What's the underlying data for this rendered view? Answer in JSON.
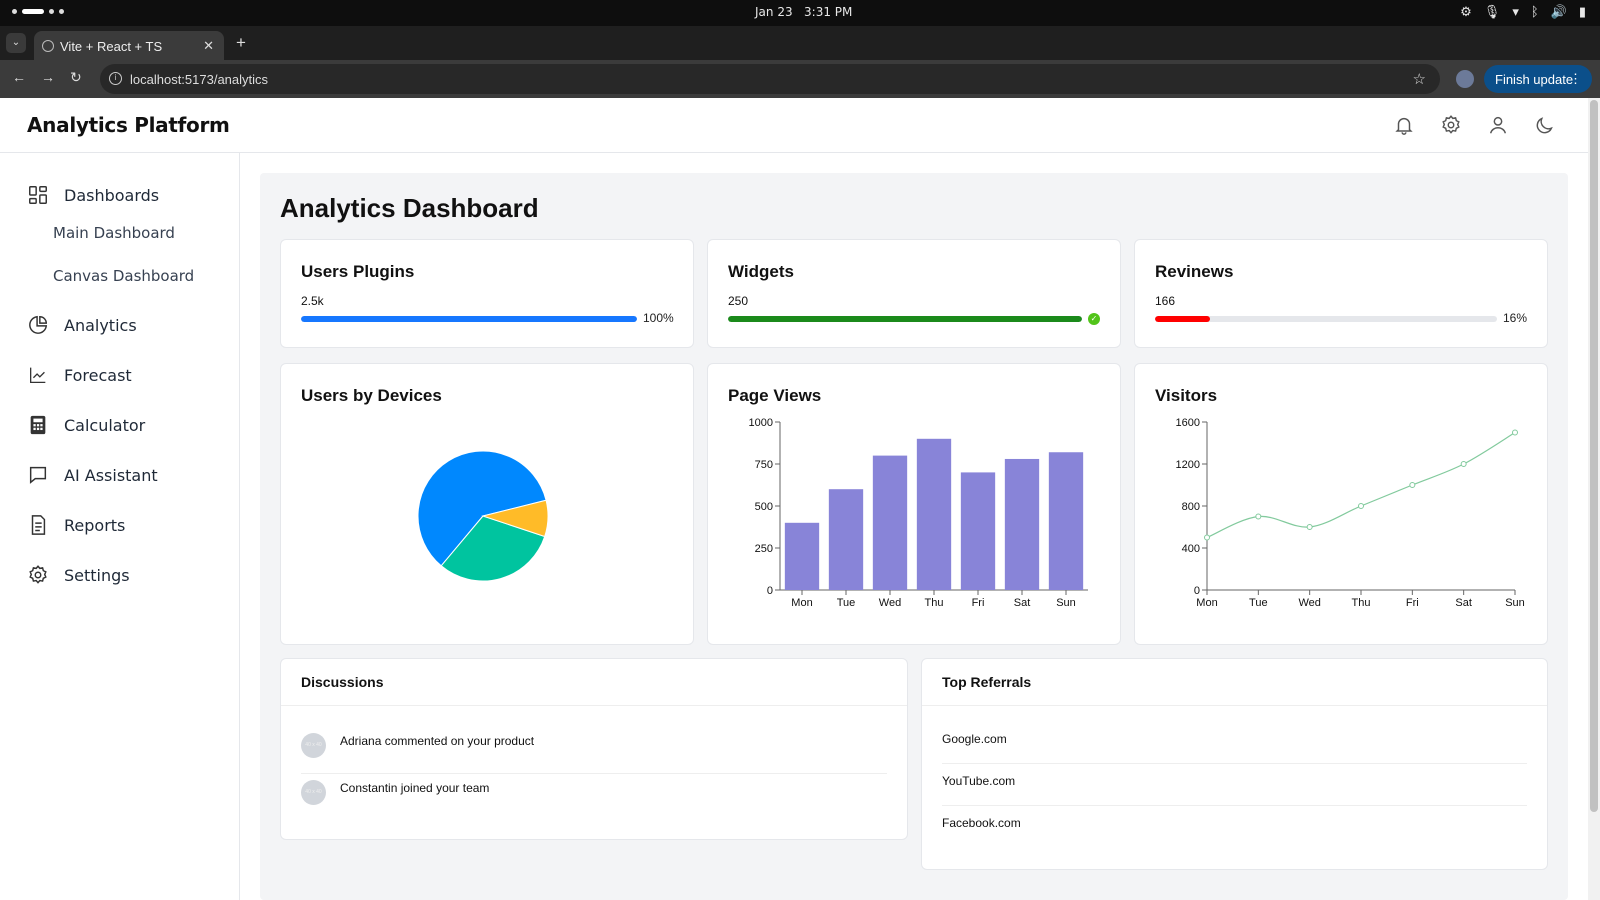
{
  "os": {
    "date": "Jan 23",
    "time": "3:31 PM"
  },
  "browser": {
    "tab_title": "Vite + React + TS",
    "tab_close": "✕",
    "new_tab": "+",
    "url": "localhost:5173/analytics",
    "finish_update": "Finish update"
  },
  "header": {
    "title": "Analytics Platform"
  },
  "sidebar": {
    "items": [
      {
        "label": "Dashboards",
        "icon": "dashboard-icon"
      },
      {
        "label": "Analytics",
        "icon": "pie-chart-icon"
      },
      {
        "label": "Forecast",
        "icon": "line-chart-icon"
      },
      {
        "label": "Calculator",
        "icon": "calculator-icon"
      },
      {
        "label": "AI Assistant",
        "icon": "message-icon"
      },
      {
        "label": "Reports",
        "icon": "document-icon"
      },
      {
        "label": "Settings",
        "icon": "gear-icon"
      }
    ],
    "subitems": [
      {
        "label": "Main Dashboard"
      },
      {
        "label": "Canvas Dashboard"
      }
    ]
  },
  "main": {
    "title": "Analytics Dashboard",
    "stats": [
      {
        "title": "Users Plugins",
        "value": "2.5k",
        "percent": "100%",
        "progress": 1.0,
        "color": "#1677ff"
      },
      {
        "title": "Widgets",
        "value": "250",
        "percent": "",
        "progress": 1.0,
        "color": "#1b8a1b",
        "status": "success"
      },
      {
        "title": "Revinews",
        "value": "166",
        "percent": "16%",
        "progress": 0.16,
        "color": "#ff0000"
      }
    ],
    "discussions": {
      "title": "Discussions",
      "items": [
        {
          "text": "Adriana commented on your product",
          "avatar": "40 x 40"
        },
        {
          "text": "Constantin joined your team",
          "avatar": "40 x 40"
        }
      ]
    },
    "referrals": {
      "title": "Top Referrals",
      "items": [
        "Google.com",
        "YouTube.com",
        "Facebook.com"
      ]
    }
  },
  "chart_data": [
    {
      "type": "pie",
      "title": "Users by Devices",
      "values": [
        60,
        31,
        9
      ],
      "colors": [
        "#0088fe",
        "#00c49f",
        "#ffbb28"
      ]
    },
    {
      "type": "bar",
      "title": "Page Views",
      "categories": [
        "Mon",
        "Tue",
        "Wed",
        "Thu",
        "Fri",
        "Sat",
        "Sun"
      ],
      "values": [
        400,
        600,
        800,
        900,
        700,
        780,
        820
      ],
      "ylim": [
        0,
        1000
      ],
      "yticks": [
        0,
        250,
        500,
        750,
        1000
      ],
      "color": "#8884d8"
    },
    {
      "type": "line",
      "title": "Visitors",
      "categories": [
        "Mon",
        "Tue",
        "Wed",
        "Thu",
        "Fri",
        "Sat",
        "Sun"
      ],
      "values": [
        500,
        700,
        600,
        800,
        1000,
        1200,
        1500
      ],
      "ylim": [
        0,
        1600
      ],
      "yticks": [
        0,
        400,
        800,
        1200,
        1600
      ],
      "color": "#82ca9d"
    }
  ]
}
